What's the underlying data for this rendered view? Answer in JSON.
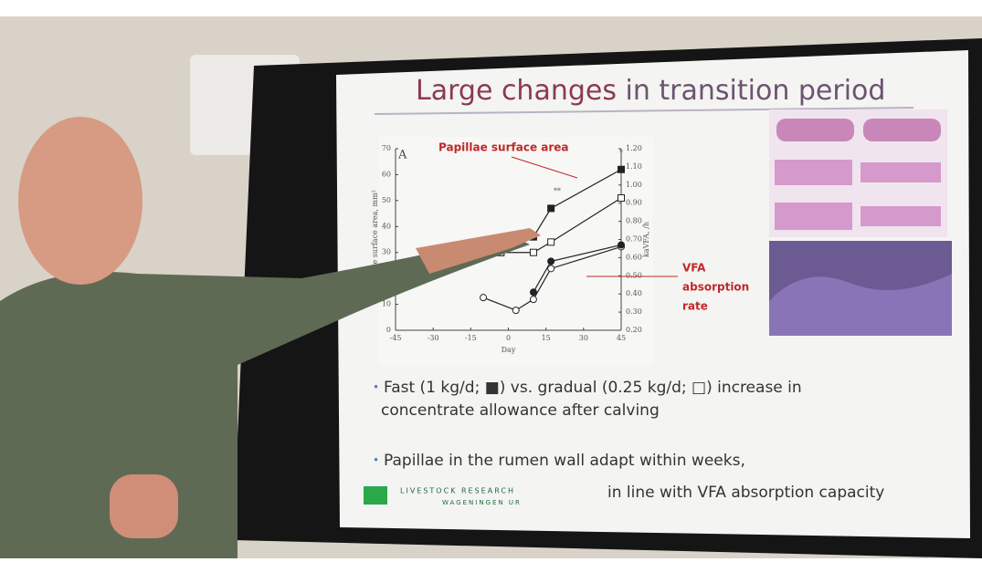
{
  "slide": {
    "title_highlight": "Large changes",
    "title_rest": " in transition period",
    "chart": {
      "type": "line",
      "panel_label": "A",
      "xlabel": "Day",
      "ylabel": "Papillae surface area, mm²",
      "y2label": "kaVFA, /h",
      "xlim": [
        -45,
        45
      ],
      "xticks": [
        -45,
        -30,
        -15,
        0,
        15,
        30,
        45
      ],
      "ylim": [
        0,
        70
      ],
      "yticks": [
        0,
        10,
        20,
        30,
        40,
        50,
        60,
        70
      ],
      "y2lim": [
        0.2,
        1.2
      ],
      "y2ticks": [
        {
          "value": 0.2,
          "label": "0.20"
        },
        {
          "value": 0.3,
          "label": "0.30"
        },
        {
          "value": 0.4,
          "label": "0.40"
        },
        {
          "value": 0.5,
          "label": "0.50"
        },
        {
          "value": 0.6,
          "label": "0.60"
        },
        {
          "value": 0.7,
          "label": "0.70"
        },
        {
          "value": 0.8,
          "label": "0.80"
        },
        {
          "value": 0.9,
          "label": "0.90"
        },
        {
          "value": 1.0,
          "label": "1.00"
        },
        {
          "value": 1.1,
          "label": "1.10"
        },
        {
          "value": 1.2,
          "label": "1.20"
        }
      ],
      "series": [
        {
          "color": "#222222",
          "marker": "filled-square",
          "x": [
            -3,
            10,
            17,
            45
          ],
          "values": [
            30,
            36,
            47,
            62
          ]
        },
        {
          "color": "#222222",
          "marker": "open-square",
          "x": [
            -3,
            10,
            17,
            45
          ],
          "values": [
            30,
            30,
            34,
            51
          ]
        },
        {
          "color": "#222222",
          "marker": "open-circle",
          "axis": "y2",
          "x": [
            -10,
            3,
            10,
            17,
            45
          ],
          "values": [
            0.38,
            0.31,
            0.37,
            0.54,
            0.66
          ]
        },
        {
          "color": "#222222",
          "marker": "filled-circle",
          "axis": "y2",
          "x": [
            10,
            17,
            45
          ],
          "values": [
            0.41,
            0.58,
            0.67
          ]
        }
      ],
      "annotations": [
        "Papillae surface area",
        "VFA",
        "absorption",
        "rate",
        "**",
        "*"
      ]
    },
    "bullets": [
      [
        "Fast (1 kg/d; ■) vs. gradual (0.25 kg/d; □) increase in",
        "concentrate allowance after calving"
      ],
      [
        "Papillae in the rumen wall adapt within weeks,",
        "in line with VFA absorption capacity"
      ]
    ],
    "logo": [
      "LIVESTOCK RESEARCH",
      "WAGENINGEN UR"
    ]
  }
}
